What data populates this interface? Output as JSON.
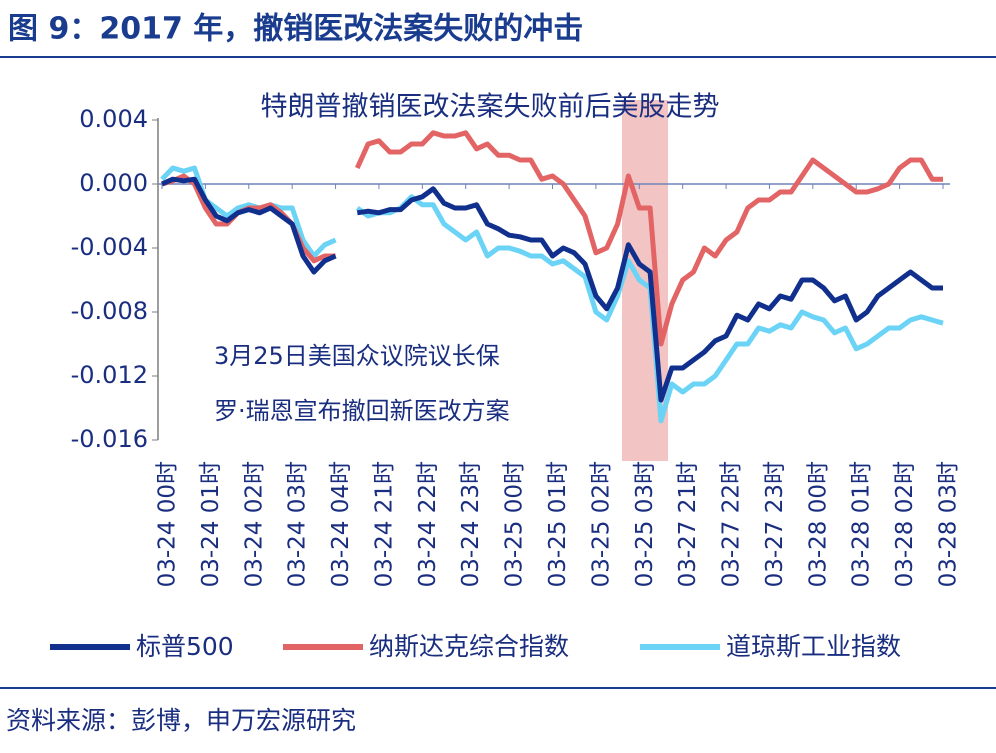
{
  "header": {
    "title": "图 9：2017 年，撤销医改法案失败的冲击"
  },
  "chart_data": {
    "type": "line",
    "title": "特朗普撤销医改法案失败前后美股走势",
    "annotations": [
      "3月25日美国众议院议长保",
      "罗·瑞恩宣布撤回新医改方案"
    ],
    "categories": [
      "03-24 00时",
      null,
      null,
      null,
      "03-24 01时",
      null,
      null,
      null,
      "03-24 02时",
      null,
      null,
      null,
      "03-24 03时",
      null,
      null,
      null,
      "03-24 04时",
      null,
      null,
      null,
      "03-24 21时",
      null,
      null,
      null,
      "03-24 22时",
      null,
      null,
      null,
      "03-24 23时",
      null,
      null,
      null,
      "03-25 00时",
      null,
      null,
      null,
      "03-25 01时",
      null,
      null,
      null,
      "03-25 02时",
      null,
      null,
      null,
      "03-25 03时",
      null,
      null,
      null,
      "03-27 21时",
      null,
      null,
      null,
      "03-27 22时",
      null,
      null,
      null,
      "03-27 23时",
      null,
      null,
      null,
      "03-28 00时",
      null,
      null,
      null,
      "03-28 01时",
      null,
      null,
      null,
      "03-28 02时",
      null,
      null,
      null,
      "03-28 03时"
    ],
    "series": [
      {
        "name": "标普500",
        "color": "#112f8c",
        "values": [
          0,
          0.0003,
          0.0002,
          0.0003,
          -0.001,
          -0.002,
          -0.0023,
          -0.0018,
          -0.0016,
          -0.0018,
          -0.0015,
          -0.002,
          -0.0025,
          -0.0045,
          -0.0055,
          -0.0048,
          -0.0045,
          null,
          -0.0018,
          -0.0017,
          -0.0018,
          -0.0016,
          -0.0016,
          -0.001,
          -0.0008,
          -0.0003,
          -0.0012,
          -0.0015,
          -0.0015,
          -0.0013,
          -0.0025,
          -0.0028,
          -0.0032,
          -0.0033,
          -0.0035,
          -0.0035,
          -0.0045,
          -0.004,
          -0.0043,
          -0.005,
          -0.007,
          -0.0078,
          -0.0065,
          -0.0038,
          -0.005,
          -0.0055,
          -0.0135,
          -0.0115,
          -0.0115,
          -0.011,
          -0.0105,
          -0.0098,
          -0.0095,
          -0.0082,
          -0.0085,
          -0.0075,
          -0.0078,
          -0.007,
          -0.0072,
          -0.006,
          -0.006,
          -0.0065,
          -0.0073,
          -0.007,
          -0.0085,
          -0.008,
          -0.007,
          -0.0065,
          -0.006,
          -0.0055,
          -0.006,
          -0.0065,
          -0.0065
        ]
      },
      {
        "name": "纳斯达克综合指数",
        "color": "#e26464",
        "values": [
          0,
          0.0002,
          0.0005,
          0,
          -0.0015,
          -0.0025,
          -0.0025,
          -0.0018,
          -0.0015,
          -0.0015,
          -0.0013,
          -0.0018,
          -0.0025,
          -0.004,
          -0.0048,
          -0.0045,
          -0.0045,
          null,
          0.001,
          0.0025,
          0.0027,
          0.002,
          0.002,
          0.0025,
          0.0025,
          0.0032,
          0.003,
          0.003,
          0.0032,
          0.0022,
          0.0025,
          0.0018,
          0.0018,
          0.0015,
          0.0015,
          0.0003,
          0.0005,
          0,
          -0.001,
          -0.002,
          -0.0043,
          -0.004,
          -0.0025,
          0.0005,
          -0.0015,
          -0.0015,
          -0.01,
          -0.0075,
          -0.006,
          -0.0055,
          -0.004,
          -0.0045,
          -0.0035,
          -0.003,
          -0.0015,
          -0.001,
          -0.001,
          -0.0005,
          -0.0005,
          0.0005,
          0.0015,
          0.001,
          0.0005,
          0,
          -0.0005,
          -0.0005,
          -0.0003,
          0,
          0.001,
          0.0015,
          0.0015,
          0.0003,
          0.0003
        ]
      },
      {
        "name": "道琼斯工业指数",
        "color": "#6ad3f6",
        "values": [
          0.0003,
          0.001,
          0.0008,
          0.001,
          -0.001,
          -0.0015,
          -0.002,
          -0.0015,
          -0.0013,
          -0.0015,
          -0.0013,
          -0.0015,
          -0.0015,
          -0.0035,
          -0.0045,
          -0.0038,
          -0.0035,
          null,
          -0.0015,
          -0.002,
          -0.0018,
          -0.0018,
          -0.0015,
          -0.0008,
          -0.0013,
          -0.0013,
          -0.0025,
          -0.003,
          -0.0035,
          -0.003,
          -0.0045,
          -0.004,
          -0.004,
          -0.0042,
          -0.0045,
          -0.0045,
          -0.005,
          -0.0048,
          -0.0053,
          -0.0058,
          -0.008,
          -0.0085,
          -0.007,
          -0.0048,
          -0.006,
          -0.0065,
          -0.0148,
          -0.0125,
          -0.013,
          -0.0125,
          -0.0125,
          -0.012,
          -0.011,
          -0.01,
          -0.01,
          -0.009,
          -0.0092,
          -0.0088,
          -0.009,
          -0.008,
          -0.0083,
          -0.0085,
          -0.0093,
          -0.009,
          -0.0103,
          -0.01,
          -0.0095,
          -0.009,
          -0.009,
          -0.0085,
          -0.0083,
          -0.0085,
          -0.0087
        ]
      }
    ],
    "ylim": [
      -0.016,
      0.004
    ],
    "yticks": [
      0.004,
      {
        "value": 0,
        "label": "0.000"
      },
      -0.004,
      -0.008,
      -0.012,
      -0.016
    ]
  },
  "footer": {
    "source": "资料来源：彭博，申万宏源研究"
  }
}
